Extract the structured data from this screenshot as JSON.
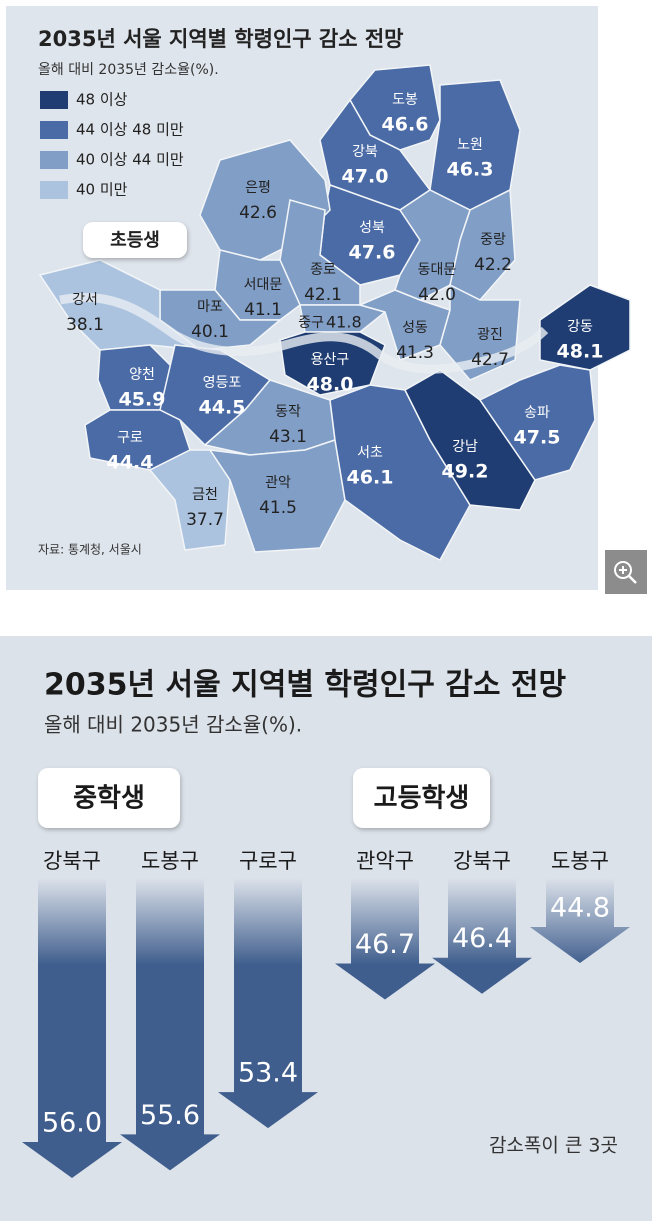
{
  "top": {
    "title": "2035년 서울 지역별 학령인구 감소 전망",
    "subtitle": "올해 대비 2035년 감소율(%).",
    "legend": [
      {
        "label": "48 이상",
        "min": 48,
        "color": "#1f3d72"
      },
      {
        "label": "44 이상 48 미만",
        "min": 44,
        "color": "#4b6ba6"
      },
      {
        "label": "40 이상 44 미만",
        "min": 40,
        "color": "#819ec6"
      },
      {
        "label": "40 미만",
        "color": "#abc3df"
      }
    ],
    "badge": "초등생",
    "regions": [
      {
        "name": "도봉",
        "value": 46.6
      },
      {
        "name": "노원",
        "value": 46.3
      },
      {
        "name": "강북",
        "value": 47.0,
        "value_label": "47.0"
      },
      {
        "name": "성북",
        "value": 47.6
      },
      {
        "name": "중랑",
        "value": 42.2
      },
      {
        "name": "동대문",
        "value": 42.0,
        "value_label": "42.0"
      },
      {
        "name": "은평",
        "value": 42.6
      },
      {
        "name": "종로",
        "value": 42.1
      },
      {
        "name": "서대문",
        "value": 41.1
      },
      {
        "name": "마포",
        "value": 40.1
      },
      {
        "name": "중구",
        "value": 41.8
      },
      {
        "name": "성동",
        "value": 41.3
      },
      {
        "name": "광진",
        "value": 42.7
      },
      {
        "name": "용산구",
        "value": 48.0,
        "value_label": "48.0"
      },
      {
        "name": "강동",
        "value": 48.1
      },
      {
        "name": "강서",
        "value": 38.1
      },
      {
        "name": "양천",
        "value": 45.9
      },
      {
        "name": "영등포",
        "value": 44.5
      },
      {
        "name": "구로",
        "value": 44.4
      },
      {
        "name": "동작",
        "value": 43.1
      },
      {
        "name": "금천",
        "value": 37.7
      },
      {
        "name": "관악",
        "value": 41.5
      },
      {
        "name": "서초",
        "value": 46.1
      },
      {
        "name": "강남",
        "value": 49.2
      },
      {
        "name": "송파",
        "value": 47.5
      }
    ],
    "source": "자료: 통계청, 서울시"
  },
  "bottom": {
    "title": "2035년 서울 지역별 학령인구 감소 전망",
    "subtitle": "올해 대비 2035년 감소율(%).",
    "groups": [
      {
        "name": "중학생",
        "items": [
          {
            "name": "강북구",
            "value": 56.0,
            "value_label": "56.0"
          },
          {
            "name": "도봉구",
            "value": 55.6
          },
          {
            "name": "구로구",
            "value": 53.4
          }
        ]
      },
      {
        "name": "고등학생",
        "items": [
          {
            "name": "관악구",
            "value": 46.7
          },
          {
            "name": "강북구",
            "value": 46.4
          },
          {
            "name": "도봉구",
            "value": 44.8
          }
        ]
      }
    ],
    "note": "감소폭이 큰 3곳"
  }
}
